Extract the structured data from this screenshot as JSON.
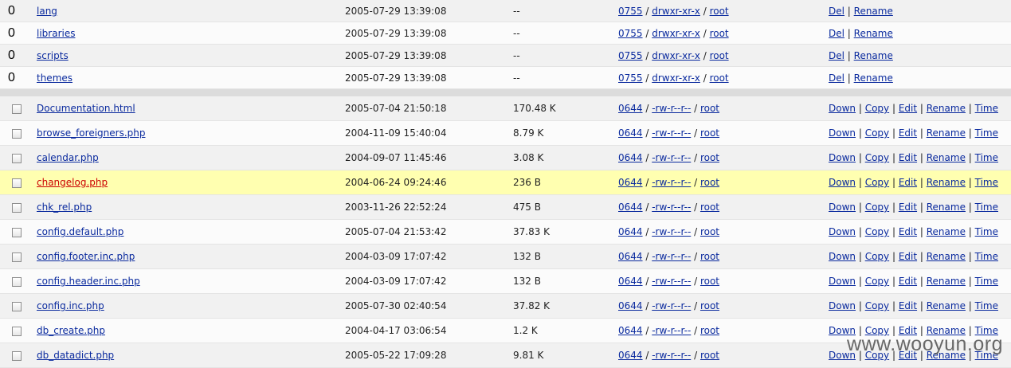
{
  "directories": [
    {
      "count": "0",
      "name": "lang",
      "modified": "2005-07-29 13:39:08",
      "size": "--",
      "perm_octal": "0755",
      "perm_str": "drwxr-xr-x",
      "owner": "root",
      "actions": [
        "Del",
        "Rename"
      ]
    },
    {
      "count": "0",
      "name": "libraries",
      "modified": "2005-07-29 13:39:08",
      "size": "--",
      "perm_octal": "0755",
      "perm_str": "drwxr-xr-x",
      "owner": "root",
      "actions": [
        "Del",
        "Rename"
      ]
    },
    {
      "count": "0",
      "name": "scripts",
      "modified": "2005-07-29 13:39:08",
      "size": "--",
      "perm_octal": "0755",
      "perm_str": "drwxr-xr-x",
      "owner": "root",
      "actions": [
        "Del",
        "Rename"
      ]
    },
    {
      "count": "0",
      "name": "themes",
      "modified": "2005-07-29 13:39:08",
      "size": "--",
      "perm_octal": "0755",
      "perm_str": "drwxr-xr-x",
      "owner": "root",
      "actions": [
        "Del",
        "Rename"
      ]
    }
  ],
  "files": [
    {
      "name": "Documentation.html",
      "modified": "2005-07-04 21:50:18",
      "size": "170.48 K",
      "perm_octal": "0644",
      "perm_str": "-rw-r--r--",
      "owner": "root",
      "highlighted": false
    },
    {
      "name": "browse_foreigners.php",
      "modified": "2004-11-09 15:40:04",
      "size": "8.79 K",
      "perm_octal": "0644",
      "perm_str": "-rw-r--r--",
      "owner": "root",
      "highlighted": false
    },
    {
      "name": "calendar.php",
      "modified": "2004-09-07 11:45:46",
      "size": "3.08 K",
      "perm_octal": "0644",
      "perm_str": "-rw-r--r--",
      "owner": "root",
      "highlighted": false
    },
    {
      "name": "changelog.php",
      "modified": "2004-06-24 09:24:46",
      "size": "236 B",
      "perm_octal": "0644",
      "perm_str": "-rw-r--r--",
      "owner": "root",
      "highlighted": true
    },
    {
      "name": "chk_rel.php",
      "modified": "2003-11-26 22:52:24",
      "size": "475 B",
      "perm_octal": "0644",
      "perm_str": "-rw-r--r--",
      "owner": "root",
      "highlighted": false
    },
    {
      "name": "config.default.php",
      "modified": "2005-07-04 21:53:42",
      "size": "37.83 K",
      "perm_octal": "0644",
      "perm_str": "-rw-r--r--",
      "owner": "root",
      "highlighted": false
    },
    {
      "name": "config.footer.inc.php",
      "modified": "2004-03-09 17:07:42",
      "size": "132 B",
      "perm_octal": "0644",
      "perm_str": "-rw-r--r--",
      "owner": "root",
      "highlighted": false
    },
    {
      "name": "config.header.inc.php",
      "modified": "2004-03-09 17:07:42",
      "size": "132 B",
      "perm_octal": "0644",
      "perm_str": "-rw-r--r--",
      "owner": "root",
      "highlighted": false
    },
    {
      "name": "config.inc.php",
      "modified": "2005-07-30 02:40:54",
      "size": "37.82 K",
      "perm_octal": "0644",
      "perm_str": "-rw-r--r--",
      "owner": "root",
      "highlighted": false
    },
    {
      "name": "db_create.php",
      "modified": "2004-04-17 03:06:54",
      "size": "1.2 K",
      "perm_octal": "0644",
      "perm_str": "-rw-r--r--",
      "owner": "root",
      "highlighted": false
    },
    {
      "name": "db_datadict.php",
      "modified": "2005-05-22 17:09:28",
      "size": "9.81 K",
      "perm_octal": "0644",
      "perm_str": "-rw-r--r--",
      "owner": "root",
      "highlighted": false
    }
  ],
  "file_actions": [
    "Down",
    "Copy",
    "Edit",
    "Rename",
    "Time"
  ],
  "separator": " | ",
  "perm_separator": " / ",
  "watermark": "www.wooyun.org"
}
